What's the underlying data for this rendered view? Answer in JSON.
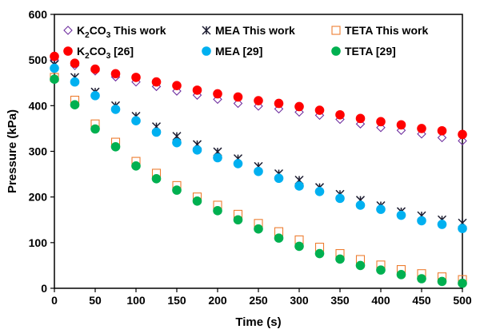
{
  "chart_data": {
    "type": "scatter",
    "xlabel": "Time (s)",
    "ylabel": "Pressure (kPa)",
    "xlim": [
      0,
      500
    ],
    "ylim": [
      0,
      600
    ],
    "x_ticks": [
      0,
      50,
      100,
      150,
      200,
      250,
      300,
      350,
      400,
      450,
      500
    ],
    "y_ticks": [
      0,
      100,
      200,
      300,
      400,
      500,
      600
    ],
    "grid": false,
    "legend_position": "top",
    "x": [
      0,
      25,
      50,
      75,
      100,
      125,
      150,
      175,
      200,
      225,
      250,
      275,
      300,
      325,
      350,
      375,
      400,
      425,
      450,
      475,
      500
    ],
    "series": [
      {
        "name": "K2CO3 This work",
        "label_main": "K",
        "label_sub": "2",
        "label_mid": "CO",
        "label_sub2": "3",
        "label_tail": " This work",
        "marker": "open-diamond",
        "color": "#7030a0",
        "values": [
          500,
          488,
          476,
          463,
          452,
          442,
          432,
          423,
          414,
          405,
          399,
          393,
          386,
          379,
          370,
          360,
          352,
          346,
          338,
          330,
          323
        ]
      },
      {
        "name": "MEA This work",
        "label": "MEA This work",
        "marker": "star",
        "color": "#1a1a2e",
        "values": [
          490,
          462,
          430,
          400,
          377,
          354,
          333,
          315,
          299,
          284,
          267,
          251,
          237,
          221,
          206,
          193,
          181,
          168,
          159,
          150,
          143
        ]
      },
      {
        "name": "TETA This work",
        "label": "TETA This work",
        "marker": "open-square",
        "color": "#ed7d31",
        "values": [
          462,
          412,
          360,
          320,
          278,
          252,
          225,
          200,
          182,
          162,
          142,
          124,
          106,
          90,
          76,
          63,
          51,
          41,
          32,
          25,
          19
        ]
      },
      {
        "name": "K2CO3 [26]",
        "label_main": "K",
        "label_sub": "2",
        "label_mid": "CO",
        "label_sub2": "3",
        "label_tail": " [26]",
        "marker": "filled-circle",
        "color": "#ff0000",
        "values": [
          508,
          493,
          480,
          470,
          462,
          452,
          444,
          434,
          426,
          419,
          411,
          405,
          398,
          390,
          380,
          372,
          365,
          358,
          350,
          345,
          337
        ]
      },
      {
        "name": "MEA [29]",
        "label": "MEA [29]",
        "marker": "filled-circle",
        "color": "#00b0f0",
        "values": [
          482,
          452,
          422,
          392,
          367,
          342,
          319,
          303,
          286,
          273,
          256,
          241,
          224,
          212,
          197,
          182,
          173,
          160,
          148,
          140,
          131
        ]
      },
      {
        "name": "TETA [29]",
        "label": "TETA [29]",
        "marker": "filled-circle",
        "color": "#00b050",
        "values": [
          458,
          402,
          349,
          310,
          268,
          240,
          215,
          191,
          170,
          150,
          130,
          110,
          92,
          76,
          64,
          50,
          40,
          30,
          21,
          15,
          11
        ]
      }
    ]
  }
}
